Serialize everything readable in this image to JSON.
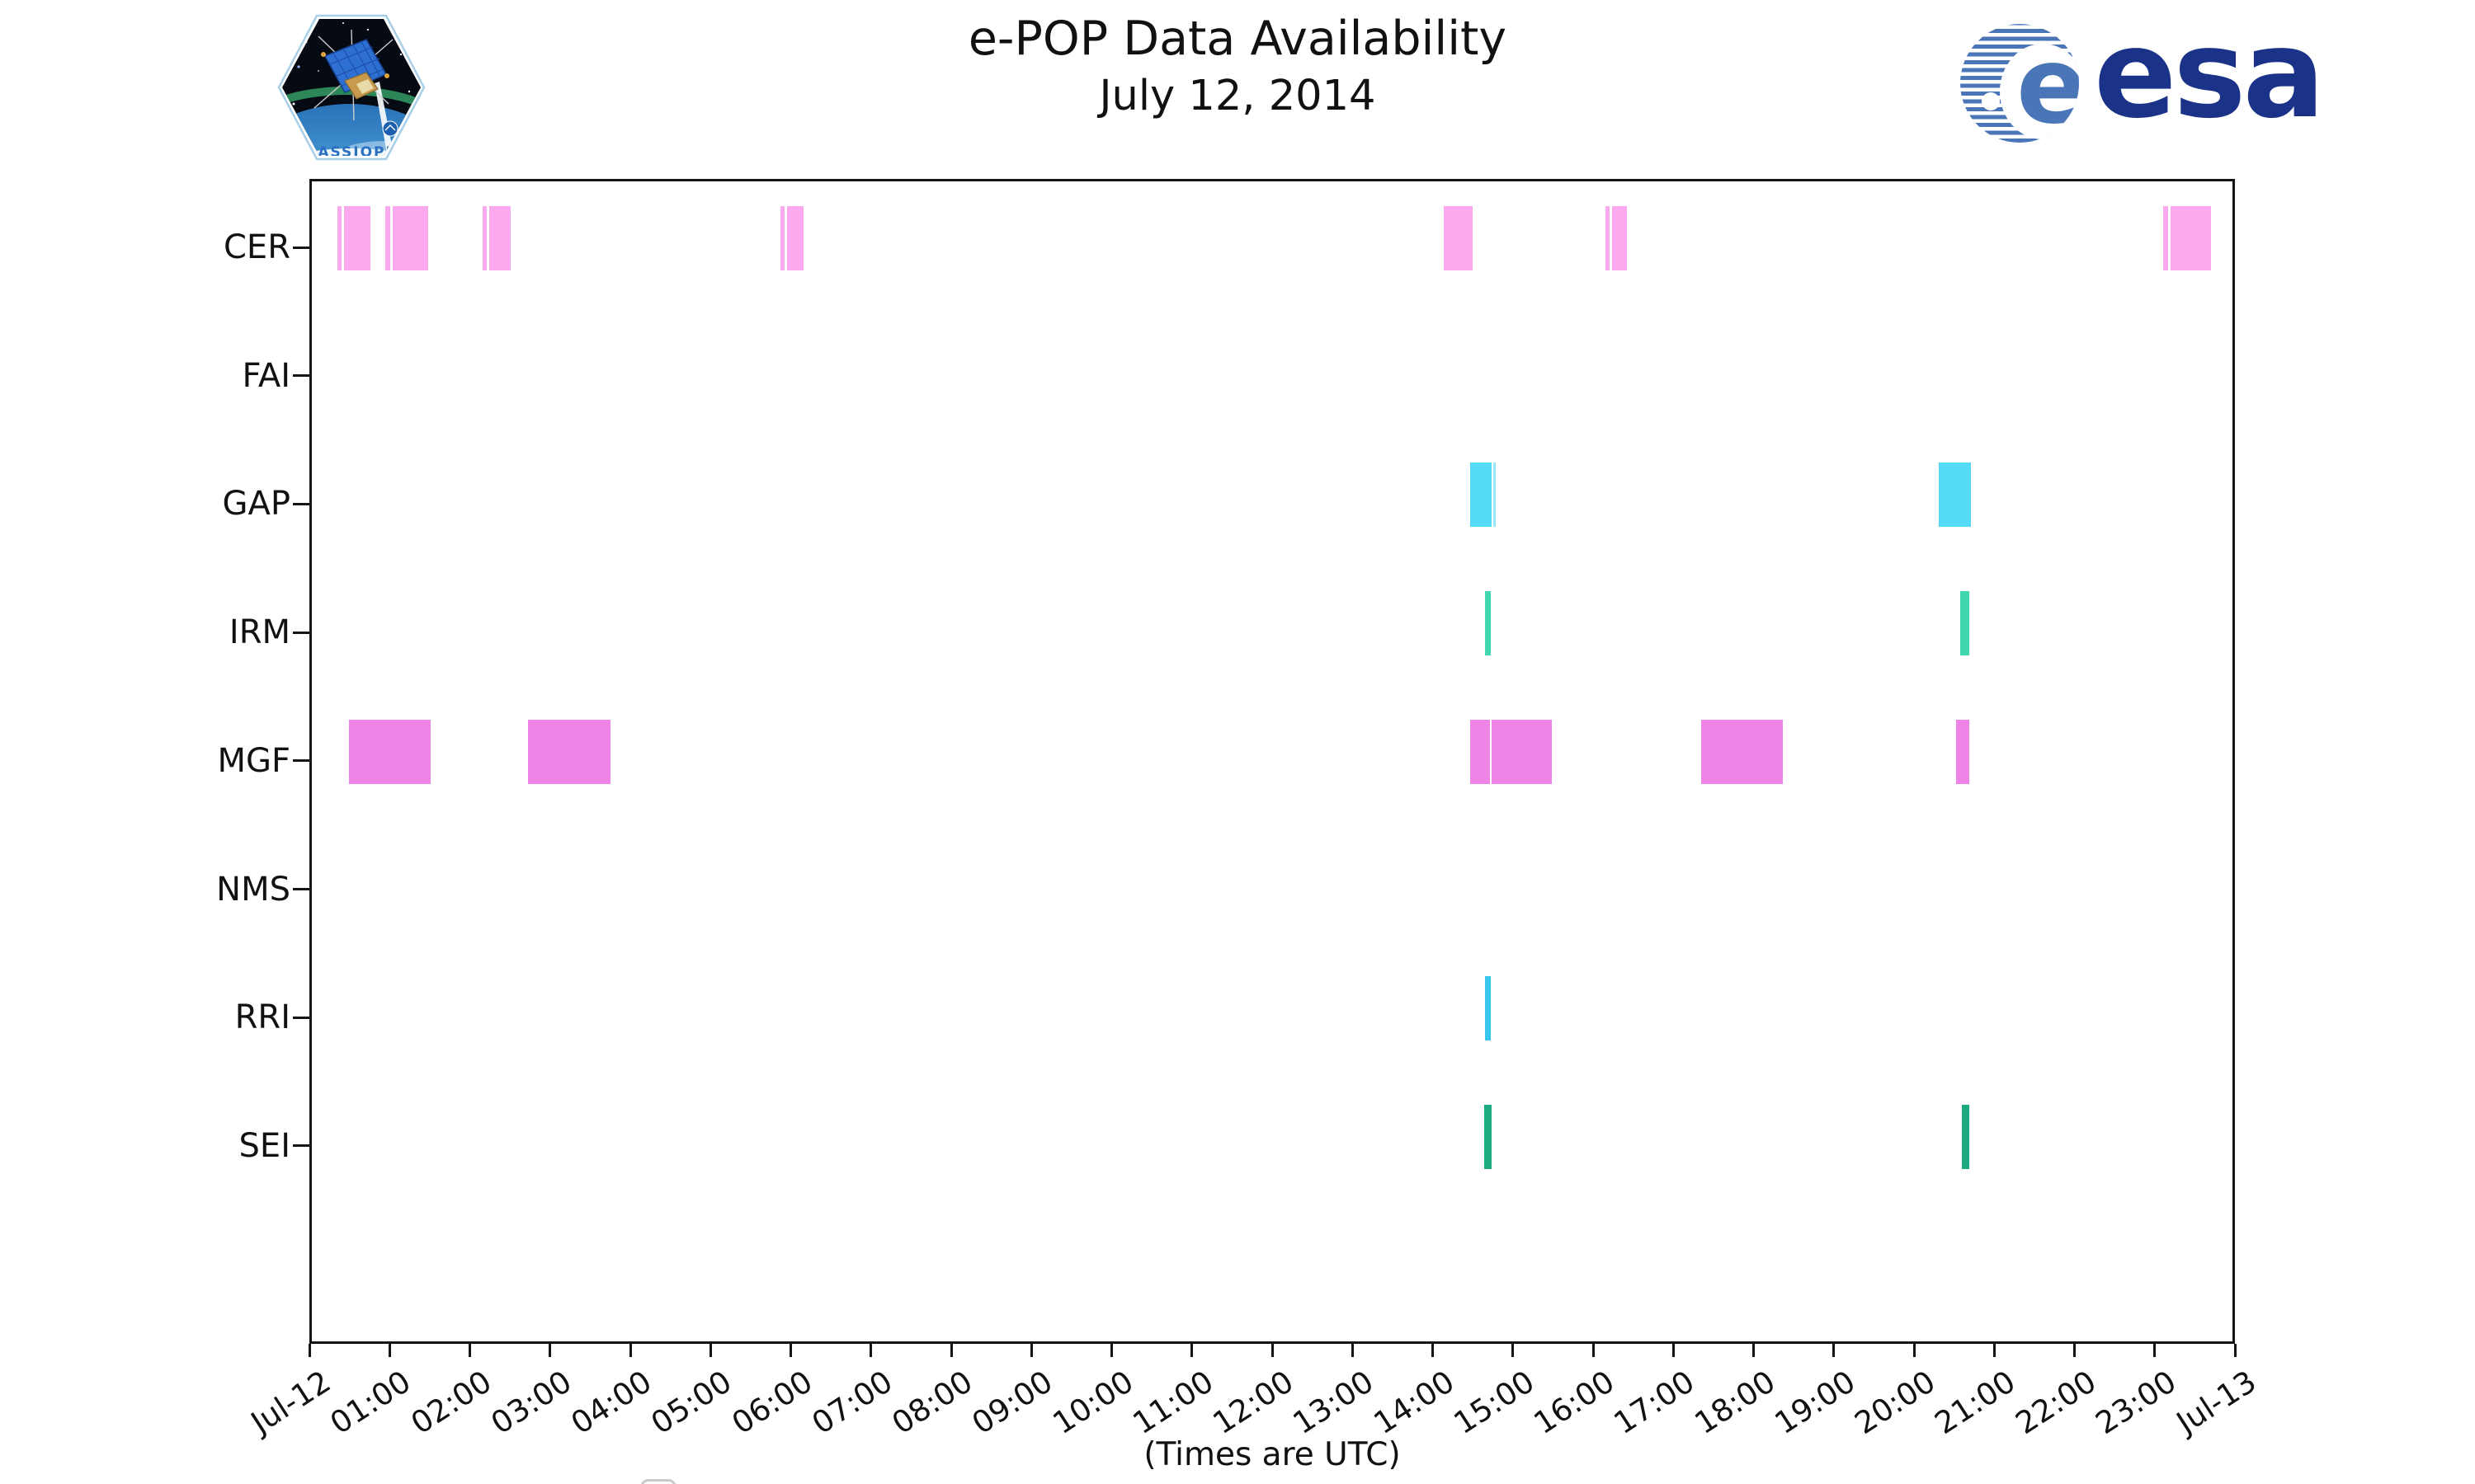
{
  "header": {
    "title_line1": "e-POP Data Availability",
    "title_line2": "July 12, 2014",
    "cassiope_label": "CASSIOPE",
    "esa_label": "esa"
  },
  "chart_data": {
    "type": "timeline",
    "title": "e-POP Data Availability",
    "subtitle": "July 12, 2014",
    "xlabel": "(Times are UTC)",
    "x_range_hours": [
      0,
      24
    ],
    "x_tick_labels": [
      "Jul-12",
      "01:00",
      "02:00",
      "03:00",
      "04:00",
      "05:00",
      "06:00",
      "07:00",
      "08:00",
      "09:00",
      "10:00",
      "11:00",
      "12:00",
      "13:00",
      "14:00",
      "15:00",
      "16:00",
      "17:00",
      "18:00",
      "19:00",
      "20:00",
      "21:00",
      "22:00",
      "23:00",
      "Jul-13"
    ],
    "grid": false,
    "legend": {
      "visible": true,
      "content": ""
    },
    "colors": {
      "CER": "#fcaaf0",
      "FAI": "#f5a8c8",
      "GAP": "#55dbf6",
      "IRM": "#41d6ab",
      "MGF": "#f083e6",
      "NMS": "#f0b060",
      "RRI": "#38c6ec",
      "SEI": "#1daa80"
    },
    "rows": [
      {
        "label": "CER",
        "color": "#fcaaf0",
        "segments": [
          {
            "start": 0.32,
            "end": 0.37
          },
          {
            "start": 0.4,
            "end": 0.73
          },
          {
            "start": 0.92,
            "end": 0.98
          },
          {
            "start": 1.01,
            "end": 1.45
          },
          {
            "start": 2.13,
            "end": 2.18
          },
          {
            "start": 2.21,
            "end": 2.48
          },
          {
            "start": 5.84,
            "end": 5.89
          },
          {
            "start": 5.92,
            "end": 6.13
          },
          {
            "start": 14.11,
            "end": 14.47
          },
          {
            "start": 16.12,
            "end": 16.18
          },
          {
            "start": 16.21,
            "end": 16.39
          },
          {
            "start": 23.07,
            "end": 23.14
          },
          {
            "start": 23.17,
            "end": 23.67
          }
        ]
      },
      {
        "label": "FAI",
        "color": "#f5a8c8",
        "segments": []
      },
      {
        "label": "GAP",
        "color": "#55dbf6",
        "segments": [
          {
            "start": 14.44,
            "end": 14.7
          },
          {
            "start": 14.72,
            "end": 14.76,
            "color": "#93e9f9"
          },
          {
            "start": 20.28,
            "end": 20.68
          }
        ]
      },
      {
        "label": "IRM",
        "color": "#41d6ab",
        "segments": [
          {
            "start": 14.62,
            "end": 14.69
          },
          {
            "start": 20.55,
            "end": 20.66
          }
        ]
      },
      {
        "label": "MGF",
        "color": "#f083e6",
        "segments": [
          {
            "start": 0.46,
            "end": 1.48
          },
          {
            "start": 2.69,
            "end": 3.72
          },
          {
            "start": 14.44,
            "end": 14.68
          },
          {
            "start": 14.7,
            "end": 15.46
          },
          {
            "start": 17.32,
            "end": 18.33
          },
          {
            "start": 20.49,
            "end": 20.66
          }
        ]
      },
      {
        "label": "NMS",
        "color": "#f0b060",
        "segments": []
      },
      {
        "label": "RRI",
        "color": "#38c6ec",
        "segments": [
          {
            "start": 14.62,
            "end": 14.69
          }
        ]
      },
      {
        "label": "SEI",
        "color": "#1daa80",
        "segments": [
          {
            "start": 14.61,
            "end": 14.7
          },
          {
            "start": 20.57,
            "end": 20.66
          }
        ]
      }
    ]
  }
}
